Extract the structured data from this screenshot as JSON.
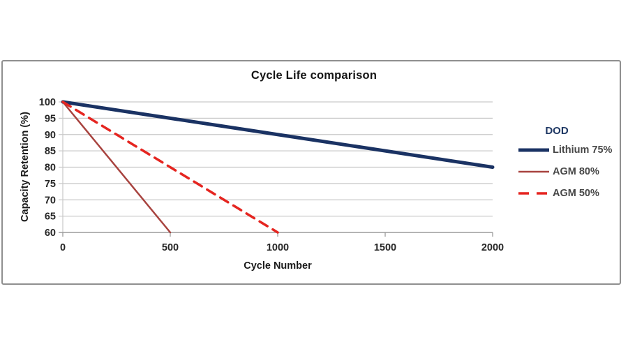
{
  "chart_data": {
    "type": "line",
    "title": "Cycle Life comparison",
    "xlabel": "Cycle Number",
    "ylabel": "Capacity Retention (%)",
    "legend_title": "DOD",
    "legend_position": "right-outside",
    "grid": "horizontal-only",
    "xlim": [
      0,
      2000
    ],
    "ylim": [
      60,
      100
    ],
    "x_ticks": [
      0,
      500,
      1000,
      1500,
      2000
    ],
    "y_ticks": [
      100,
      95,
      90,
      85,
      80,
      75,
      70,
      65,
      60
    ],
    "series": [
      {
        "name": "Lithium 75%",
        "color": "#1a3263",
        "dash": "solid",
        "width": 5,
        "points": [
          [
            0,
            100
          ],
          [
            2000,
            80
          ]
        ]
      },
      {
        "name": "AGM 80%",
        "color": "#a8433f",
        "dash": "solid",
        "width": 2.5,
        "points": [
          [
            0,
            100
          ],
          [
            500,
            60
          ]
        ]
      },
      {
        "name": "AGM 50%",
        "color": "#e52520",
        "dash": "dashed",
        "width": 3.5,
        "points": [
          [
            0,
            100
          ],
          [
            1000,
            60
          ]
        ]
      }
    ],
    "colors": {
      "gridline": "#c9c9c9",
      "axis_line": "#9c9c9c",
      "tick_label": "#262626",
      "frame_border": "#8f8f8f",
      "legend_title_text": "#1f3864",
      "legend_label_text": "#474747",
      "background": "#ffffff"
    }
  }
}
